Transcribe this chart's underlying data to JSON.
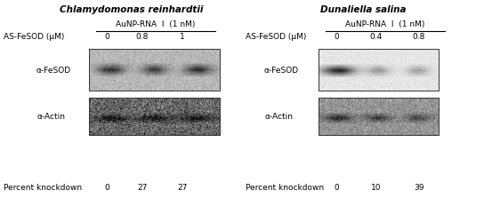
{
  "fig_width": 5.44,
  "fig_height": 2.23,
  "dpi": 100,
  "bg_color": "#ffffff",
  "left_title": "Chlamydomonas reinhardtii",
  "right_title": "Dunaliella salina",
  "left_aunp_label": "AuNP-RNA  I  (1 nM)",
  "right_aunp_label": "AuNP-RNA  I  (1 nM)",
  "left_as_label": "AS-FeSOD (μM)",
  "left_as_values": [
    "0",
    "0.8",
    "1"
  ],
  "right_as_label": "AS-FeSOD (μM)",
  "right_as_values": [
    "0",
    "0.4",
    "0.8"
  ],
  "left_fesod_label": "α-FeSOD",
  "left_actin_label": "α-Actin",
  "right_fesod_label": "α-FeSOD",
  "right_actin_label": "α-Actin",
  "left_pct_label": "Percent knockdown",
  "left_pct_values": [
    "0",
    "27",
    "27"
  ],
  "right_pct_label": "Percent knockdown",
  "right_pct_values": [
    "0",
    "10",
    "39"
  ]
}
